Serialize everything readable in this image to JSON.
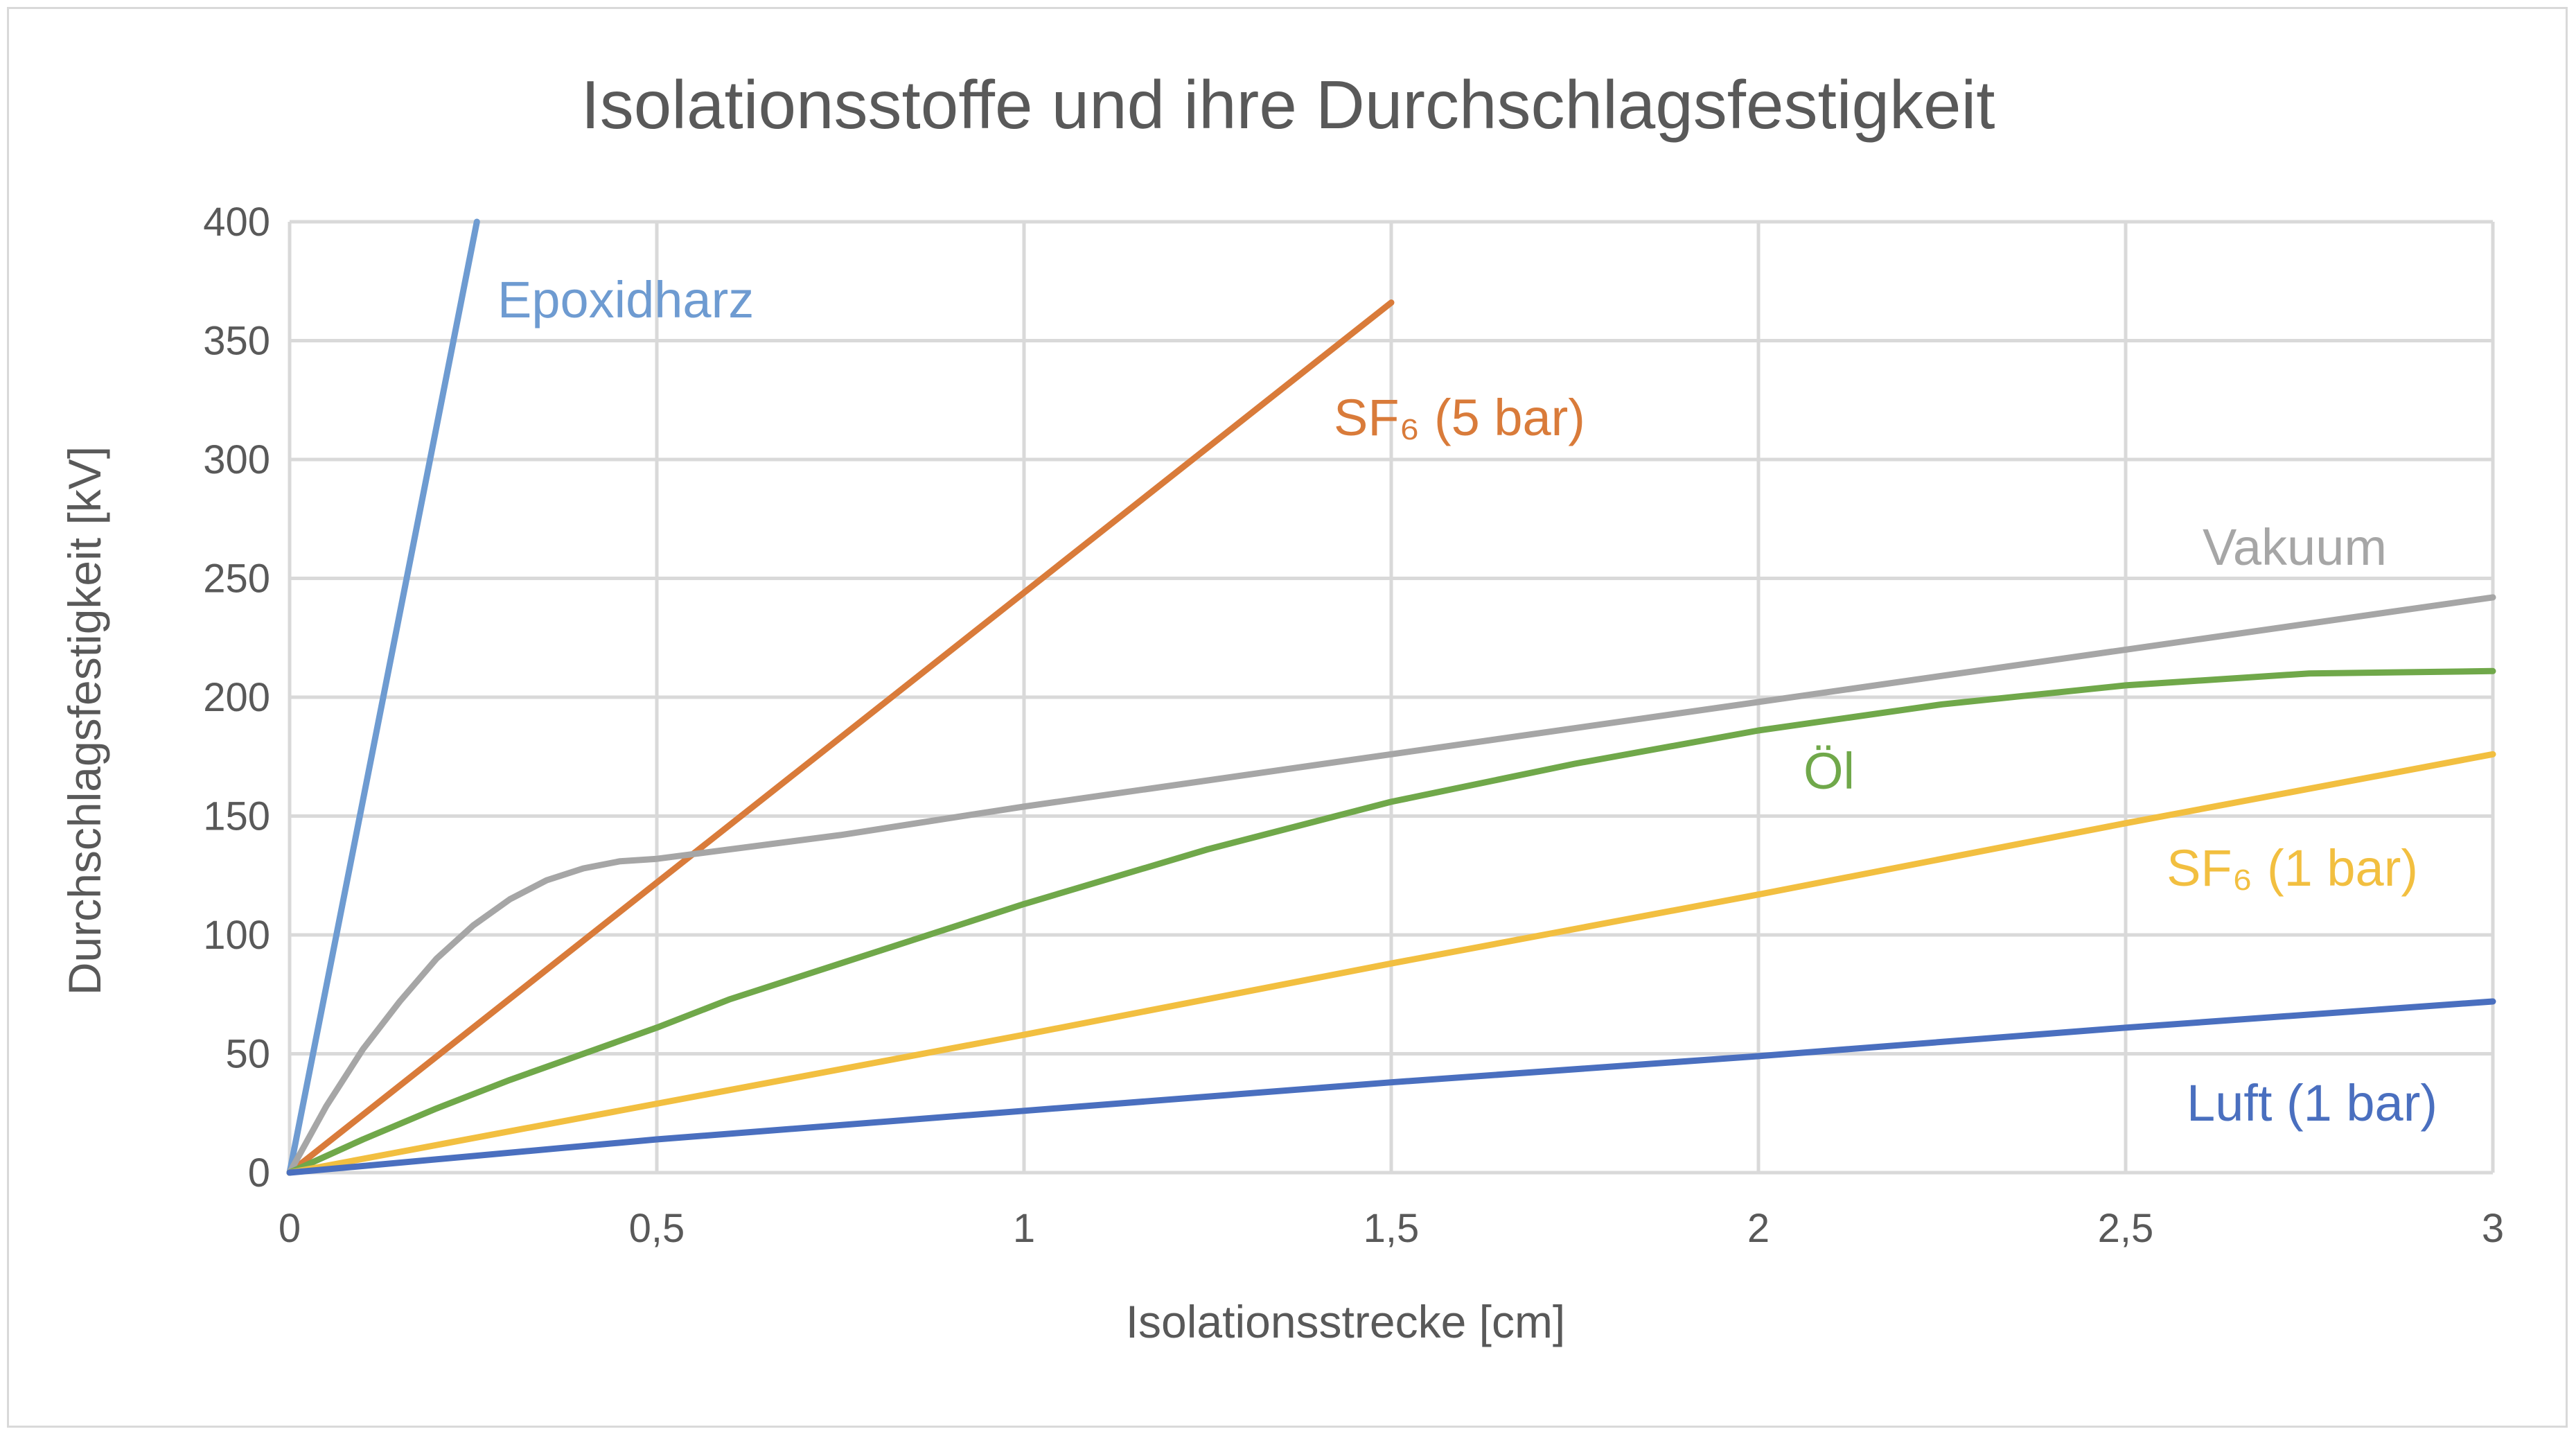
{
  "chart_data": {
    "type": "line",
    "title": "Isolationsstoffe und ihre Durchschlagsfestigkeit",
    "xlabel": "Isolationsstrecke [cm]",
    "ylabel": "Durchschlagsfestigkeit [kV]",
    "xlim": [
      0,
      3
    ],
    "ylim": [
      0,
      400
    ],
    "x_ticks": [
      "0",
      "0,5",
      "1",
      "1,5",
      "2",
      "2,5",
      "3"
    ],
    "y_ticks": [
      "0",
      "50",
      "100",
      "150",
      "200",
      "250",
      "300",
      "350",
      "400"
    ],
    "grid": true,
    "legend": "none (series labels placed next to lines)",
    "series": [
      {
        "name": "Epoxidharz",
        "label_text": "Epoxidharz",
        "color": "#6e9bd1",
        "points": [
          [
            0,
            0
          ],
          [
            0.255,
            400
          ]
        ]
      },
      {
        "name": "SF6 (5 bar)",
        "label_text": "SF₆ (5 bar)",
        "color": "#d97b3a",
        "points": [
          [
            0,
            0
          ],
          [
            0.5,
            122
          ],
          [
            1.0,
            244
          ],
          [
            1.5,
            366
          ]
        ]
      },
      {
        "name": "Vakuum",
        "label_text": "Vakuum",
        "color": "#a6a6a6",
        "points": [
          [
            0,
            0
          ],
          [
            0.05,
            28
          ],
          [
            0.1,
            52
          ],
          [
            0.15,
            72
          ],
          [
            0.2,
            90
          ],
          [
            0.25,
            104
          ],
          [
            0.3,
            115
          ],
          [
            0.35,
            123
          ],
          [
            0.4,
            128
          ],
          [
            0.45,
            131
          ],
          [
            0.5,
            132
          ],
          [
            0.75,
            142
          ],
          [
            1.0,
            154
          ],
          [
            1.5,
            176
          ],
          [
            2.0,
            198
          ],
          [
            2.5,
            220
          ],
          [
            3.0,
            242
          ]
        ]
      },
      {
        "name": "Öl",
        "label_text": "Öl",
        "color": "#70a84a",
        "points": [
          [
            0,
            0
          ],
          [
            0.1,
            14
          ],
          [
            0.2,
            27
          ],
          [
            0.3,
            39
          ],
          [
            0.4,
            50
          ],
          [
            0.5,
            61
          ],
          [
            0.6,
            73
          ],
          [
            0.75,
            88
          ],
          [
            1.0,
            113
          ],
          [
            1.25,
            136
          ],
          [
            1.5,
            156
          ],
          [
            1.75,
            172
          ],
          [
            2.0,
            186
          ],
          [
            2.25,
            197
          ],
          [
            2.5,
            205
          ],
          [
            2.75,
            210
          ],
          [
            3.0,
            211
          ]
        ]
      },
      {
        "name": "SF6 (1 bar)",
        "label_text": "SF₆ (1 bar)",
        "color": "#f2bf40",
        "points": [
          [
            0,
            0
          ],
          [
            0.5,
            29
          ],
          [
            1.0,
            58
          ],
          [
            1.5,
            88
          ],
          [
            2.0,
            117
          ],
          [
            2.5,
            147
          ],
          [
            3.0,
            176
          ]
        ]
      },
      {
        "name": "Luft (1 bar)",
        "label_text": "Luft (1 bar)",
        "color": "#4a6fbf",
        "points": [
          [
            0,
            0
          ],
          [
            0.5,
            14
          ],
          [
            1.0,
            26
          ],
          [
            1.5,
            38
          ],
          [
            2.0,
            49
          ],
          [
            2.5,
            61
          ],
          [
            3.0,
            72
          ]
        ]
      }
    ]
  }
}
